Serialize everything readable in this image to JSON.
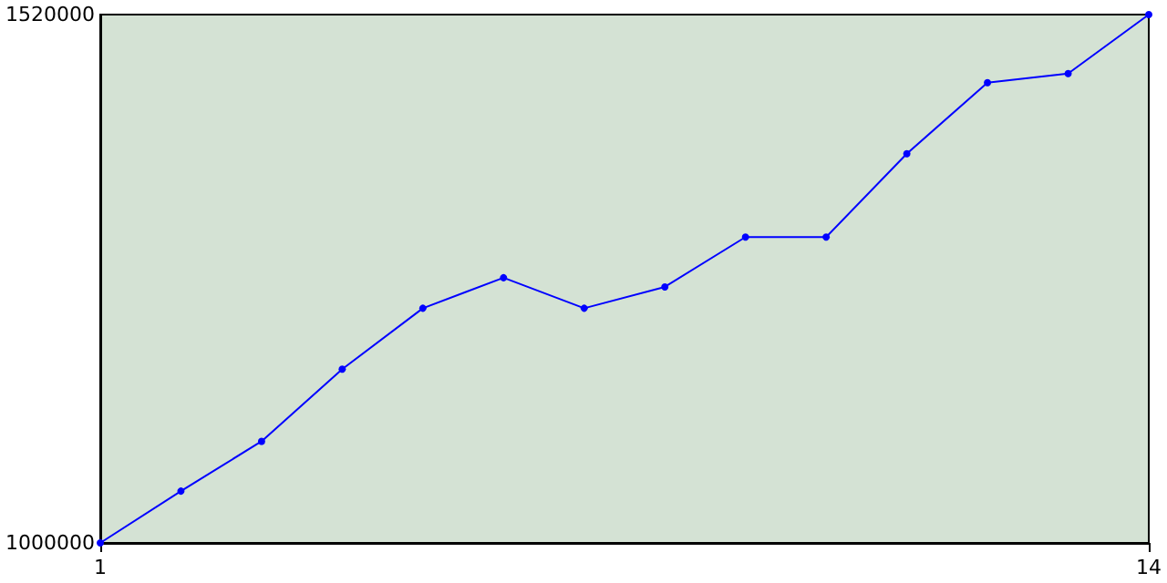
{
  "chart_data": {
    "type": "line",
    "x": [
      1,
      2,
      3,
      4,
      5,
      6,
      7,
      8,
      9,
      10,
      11,
      12,
      13,
      14
    ],
    "series": [
      {
        "color": "#0000ff",
        "values": [
          1000000,
          1051000,
          1100000,
          1171000,
          1231000,
          1261000,
          1231000,
          1252000,
          1301000,
          1301000,
          1383000,
          1453000,
          1462000,
          1520000
        ]
      }
    ],
    "xlim": [
      1,
      14
    ],
    "xticks": [
      1,
      14
    ],
    "ylim": [
      1000000,
      1520000
    ],
    "yticks": [
      1000000,
      1520000
    ],
    "grid": false,
    "marker": "circle",
    "line_style": "solid"
  }
}
